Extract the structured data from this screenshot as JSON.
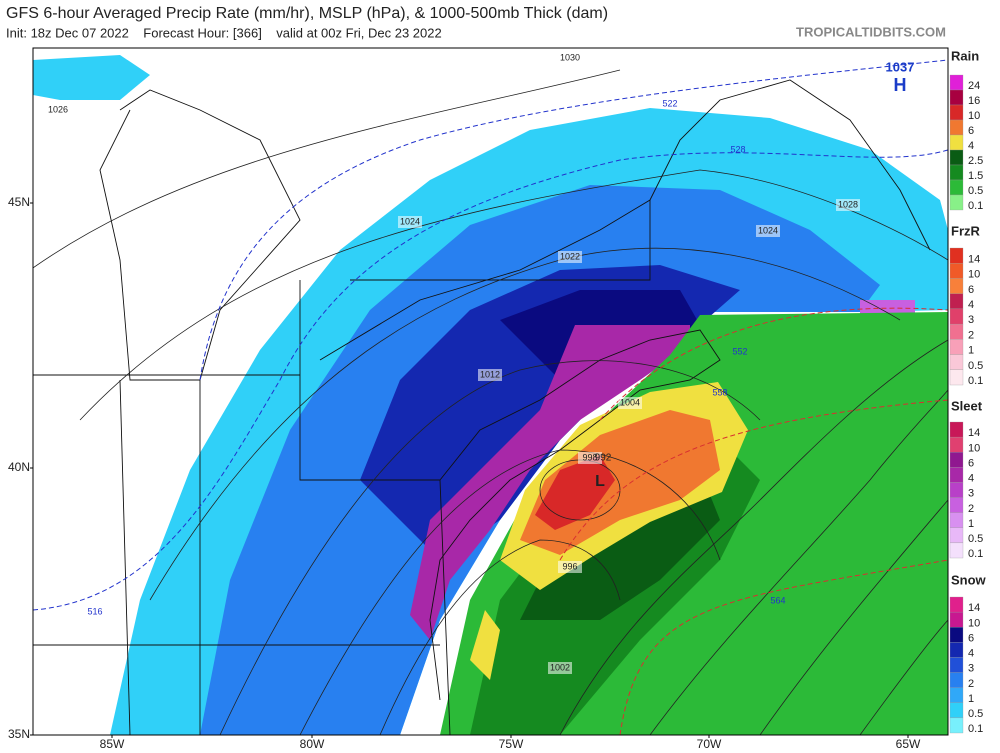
{
  "header": {
    "title": "GFS 6-hour Averaged Precip Rate (mm/hr), MSLP (hPa), & 1000-500mb Thick (dam)",
    "subtitle": "Init: 18z Dec 07 2022    Forecast Hour: [366]    valid at 00z Fri, Dec 23 2022",
    "site": "TROPICALTIDBITS.COM"
  },
  "map": {
    "lat_labels": [
      "45N",
      "40N",
      "35N"
    ],
    "lon_labels": [
      "85W",
      "80W",
      "75W",
      "70W",
      "65W"
    ],
    "pressure_labels": [
      "1030",
      "1026",
      "1024",
      "1022",
      "1012",
      "1004",
      "998",
      "996",
      "1002",
      "1028",
      "1024"
    ],
    "thickness_labels": [
      "522",
      "528",
      "516",
      "552",
      "558",
      "564"
    ],
    "high": {
      "value": "1037",
      "symbol": "H"
    },
    "low": {
      "value": "992",
      "symbol": "L"
    }
  },
  "legend": [
    {
      "title": "Rain",
      "labels": [
        "24",
        "16",
        "10",
        "6",
        "4",
        "2.5",
        "1.5",
        "0.5",
        "0.1"
      ],
      "colors": [
        "#e020d8",
        "#a80040",
        "#d82828",
        "#f07830",
        "#f0e040",
        "#0a5c14",
        "#158a20",
        "#2cba38",
        "#88f088"
      ]
    },
    {
      "title": "FrzR",
      "labels": [
        "14",
        "10",
        "6",
        "4",
        "3",
        "2",
        "1",
        "0.5",
        "0.1"
      ],
      "colors": [
        "#e03020",
        "#f05a28",
        "#f8803a",
        "#c02050",
        "#e0406a",
        "#f07090",
        "#f8a0b8",
        "#fac8d8",
        "#fde8ee"
      ]
    },
    {
      "title": "Sleet",
      "labels": [
        "14",
        "10",
        "6",
        "4",
        "3",
        "2",
        "1",
        "0.5",
        "0.1"
      ],
      "colors": [
        "#c81858",
        "#e04070",
        "#901890",
        "#a828a8",
        "#b840c8",
        "#c860e0",
        "#d890f0",
        "#e8b8f8",
        "#f4e0fc"
      ]
    },
    {
      "title": "Snow",
      "labels": [
        "14",
        "10",
        "6",
        "4",
        "3",
        "2",
        "1",
        "0.5",
        "0.1"
      ],
      "colors": [
        "#e0208c",
        "#c81890",
        "#0a0a80",
        "#1428b0",
        "#2050d8",
        "#2880f0",
        "#30a8f8",
        "#30d0f8",
        "#78f0fc"
      ]
    }
  ]
}
